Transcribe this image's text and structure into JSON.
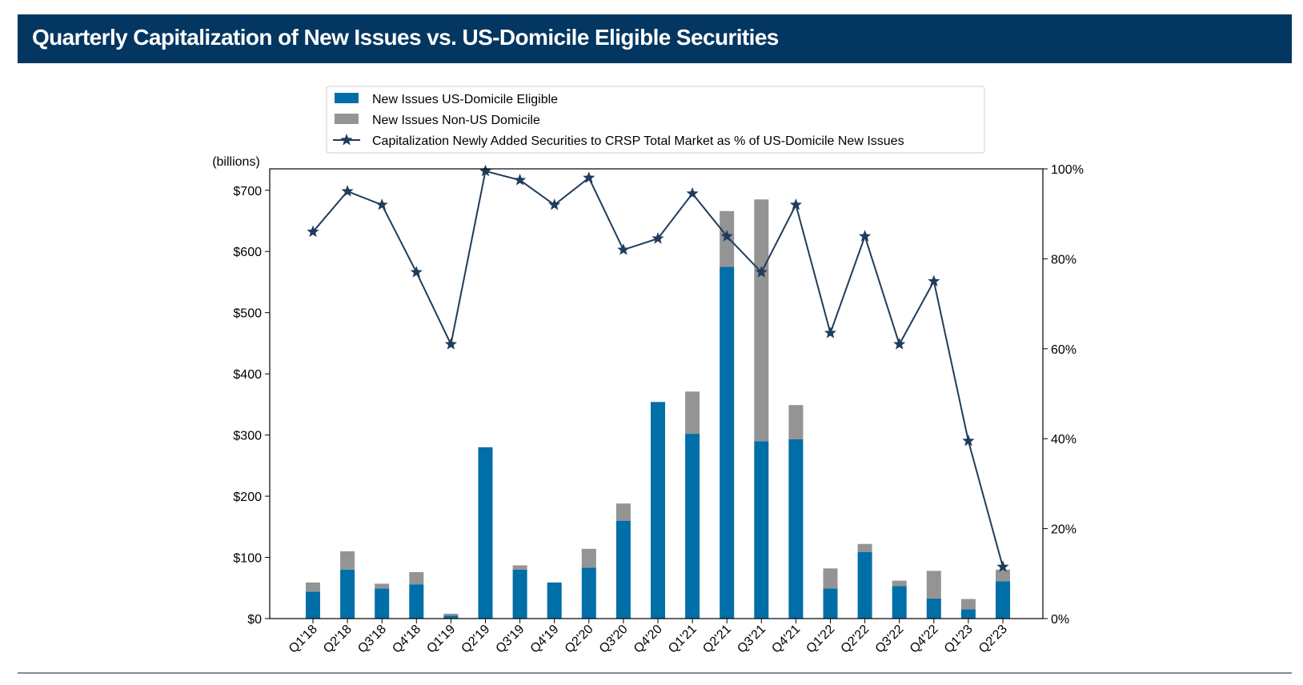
{
  "title": "Quarterly Capitalization of New Issues vs. US-Domicile Eligible Securities",
  "chart_data": {
    "type": "bar",
    "stacked": true,
    "categories": [
      "Q1'18",
      "Q2'18",
      "Q3'18",
      "Q4'18",
      "Q1'19",
      "Q2'19",
      "Q3'19",
      "Q4'19",
      "Q2'20",
      "Q3'20",
      "Q4'20",
      "Q1'21",
      "Q2'21",
      "Q3'21",
      "Q4'21",
      "Q1'22",
      "Q2'22",
      "Q3'22",
      "Q4'22",
      "Q1'23",
      "Q2'23"
    ],
    "y_unit_label": "(billions)",
    "ylim": [
      0,
      735
    ],
    "yticks": [
      0,
      100,
      200,
      300,
      400,
      500,
      600,
      700
    ],
    "ytick_labels": [
      "$0",
      "$100",
      "$200",
      "$300",
      "$400",
      "$500",
      "$600",
      "$700"
    ],
    "y2lim": [
      0,
      100
    ],
    "y2ticks": [
      0,
      20,
      40,
      60,
      80,
      100
    ],
    "y2tick_labels": [
      "0%",
      "20%",
      "40%",
      "60%",
      "80%",
      "100%"
    ],
    "legend_position": "top-center",
    "grid": false,
    "series": [
      {
        "name": "New Issues US-Domicile Eligible",
        "kind": "bar",
        "color": "#006ea7",
        "values": [
          44,
          80,
          49,
          56,
          5,
          280,
          80,
          59,
          83,
          160,
          354,
          302,
          575,
          290,
          293,
          49,
          109,
          53,
          33,
          15,
          61
        ]
      },
      {
        "name": "New Issues Non-US Domicile",
        "kind": "bar",
        "color": "#949494",
        "values": [
          15,
          30,
          8,
          20,
          3,
          0,
          7,
          0,
          31,
          28,
          0,
          69,
          91,
          395,
          56,
          33,
          13,
          9,
          45,
          17,
          19
        ]
      },
      {
        "name": "Capitalization Newly Added Securities to CRSP Total Market as % of US-Domicile New Issues",
        "kind": "line",
        "axis": "right",
        "color": "#1f3d5c",
        "marker": "star",
        "values": [
          86,
          95,
          92,
          77,
          61,
          99.5,
          97.5,
          92,
          98,
          82,
          84.5,
          94.5,
          85,
          77,
          92,
          63.5,
          85,
          61,
          75,
          39.5,
          11.5
        ]
      }
    ]
  }
}
